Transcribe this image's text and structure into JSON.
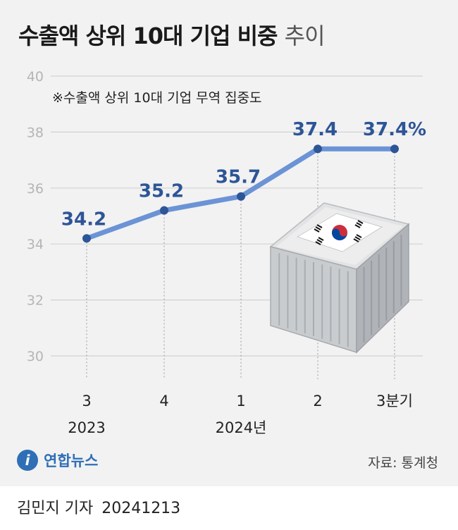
{
  "title": {
    "bold": "수출액 상위 10대 기업 비중",
    "light": "추이"
  },
  "subtitle": "※수출액 상위 10대 기업 무역 집중도",
  "chart_data": {
    "type": "line",
    "categories": [
      "3",
      "4",
      "1",
      "2",
      "3분기"
    ],
    "year_labels": [
      "2023",
      "",
      "2024년",
      "",
      ""
    ],
    "values": [
      34.2,
      35.2,
      35.7,
      37.4,
      37.4
    ],
    "data_labels": [
      "34.2",
      "35.2",
      "35.7",
      "37.4",
      "37.4%"
    ],
    "ylim": [
      30,
      40
    ],
    "yticks": [
      30,
      32,
      34,
      36,
      38,
      40
    ],
    "grid": true,
    "line_color": "#6b93d6",
    "point_color": "#2d5597",
    "label_color": "#2d5597"
  },
  "footer": {
    "logo_text": "연합뉴스",
    "source": "자료: 통계청",
    "reporter": "김민지 기자",
    "date": "20241213"
  }
}
